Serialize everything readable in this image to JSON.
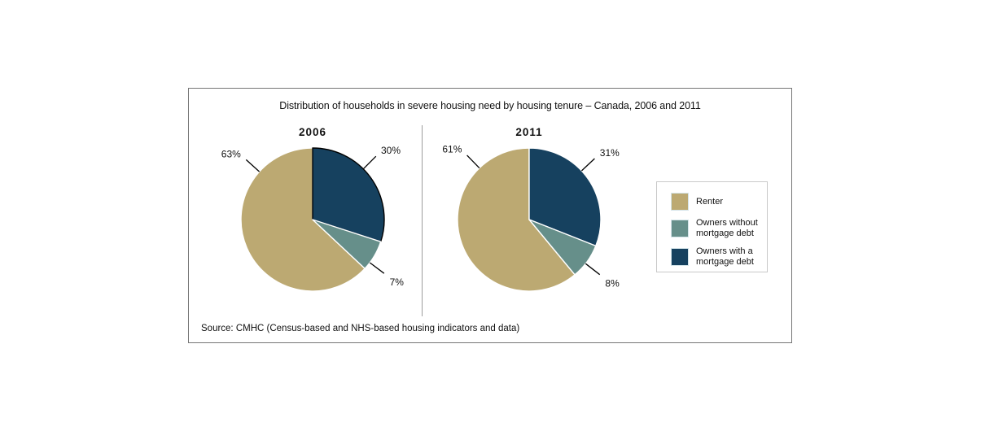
{
  "title": "Distribution of households in severe housing need by housing tenure – Canada, 2006 and 2011",
  "source": "Source: CMHC (Census-based and NHS-based housing indicators and data)",
  "colors": {
    "renter": "#BCA972",
    "owners_without_mortgage": "#668F8A",
    "owners_with_mortgage": "#16415F"
  },
  "legend": {
    "items": [
      {
        "label": "Renter",
        "color": "#BCA972"
      },
      {
        "label": "Owners without mortgage debt",
        "color": "#668F8A"
      },
      {
        "label": "Owners with a mortgage debt",
        "color": "#16415F"
      }
    ]
  },
  "chart_data": [
    {
      "type": "pie",
      "title": "2006",
      "start_angle_deg": 0,
      "direction": "clockwise",
      "slices": [
        {
          "label": "Owners with a mortgage debt",
          "value": 30,
          "pct_label": "30%",
          "color": "#16415F",
          "outline": "#000000",
          "label_angle": 45
        },
        {
          "label": "Owners without mortgage debt",
          "value": 7,
          "pct_label": "7%",
          "color": "#668F8A",
          "outline": "#FFFFFF",
          "label_angle": 127
        },
        {
          "label": "Renter",
          "value": 63,
          "pct_label": "63%",
          "color": "#BCA972",
          "outline": "#FFFFFF",
          "label_angle": 312
        }
      ]
    },
    {
      "type": "pie",
      "title": "2011",
      "start_angle_deg": 0,
      "direction": "clockwise",
      "slices": [
        {
          "label": "Owners with a mortgage debt",
          "value": 31,
          "pct_label": "31%",
          "color": "#16415F",
          "outline": "#FFFFFF",
          "label_angle": 47
        },
        {
          "label": "Owners without mortgage debt",
          "value": 8,
          "pct_label": "8%",
          "color": "#668F8A",
          "outline": "#FFFFFF",
          "label_angle": 128
        },
        {
          "label": "Renter",
          "value": 61,
          "pct_label": "61%",
          "color": "#BCA972",
          "outline": "#FFFFFF",
          "label_angle": 316
        }
      ]
    }
  ]
}
